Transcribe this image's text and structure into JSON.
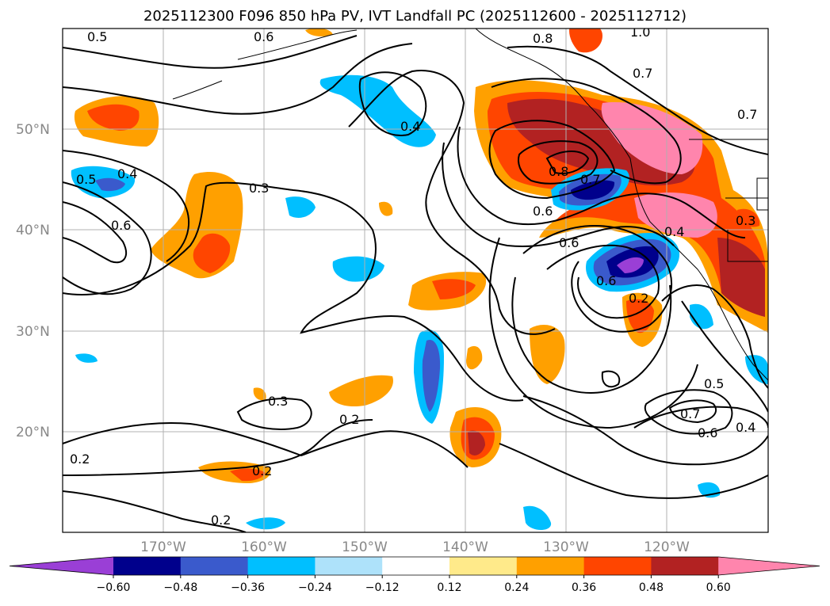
{
  "title": "2025112300 F096 850 hPa PV, IVT Landfall PC (2025112600 - 2025112712)",
  "map": {
    "lat_labels": [
      "50°N",
      "40°N",
      "30°N",
      "20°N"
    ],
    "lon_labels": [
      "170°W",
      "160°W",
      "150°W",
      "140°W",
      "130°W",
      "120°W"
    ],
    "contour_labels": [
      "0.5",
      "0.6",
      "0.8",
      "1.0",
      "0.7",
      "0.7",
      "0.4",
      "0.5",
      "0.4",
      "0.3",
      "0.6",
      "0.8",
      "0.7",
      "0.6",
      "0.6",
      "0.4",
      "0.3",
      "0.2",
      "0.6",
      "0.3",
      "0.2",
      "0.2",
      "0.2",
      "0.5",
      "0.7",
      "0.6",
      "0.4",
      "0.2"
    ]
  },
  "colorbar": {
    "ticks": [
      "−0.60",
      "−0.48",
      "−0.36",
      "−0.24",
      "−0.12",
      "0.12",
      "0.24",
      "0.36",
      "0.48",
      "0.60"
    ],
    "colors": [
      "#9a3fd6",
      "#00008c",
      "#3a5acc",
      "#00bfff",
      "#aee2fa",
      "#ffffff",
      "#ffea8a",
      "#ffa000",
      "#ff4500",
      "#b22222",
      "#ff85ad"
    ]
  }
}
